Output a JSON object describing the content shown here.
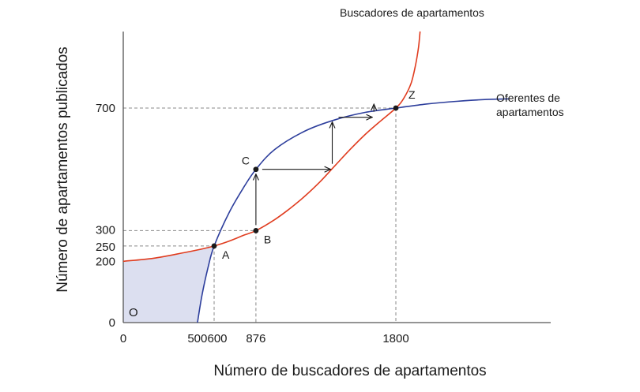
{
  "chart_data": {
    "type": "line",
    "xlabel": "Número de buscadores de apartamentos",
    "ylabel": "Número de apartamentos publicados",
    "origin_label": "O",
    "xlim": [
      0,
      2600
    ],
    "ylim": [
      0,
      950
    ],
    "x_ticks": [
      {
        "value": 0,
        "label": "0"
      },
      {
        "value": 500,
        "label": "500"
      },
      {
        "value": 600,
        "label": "600"
      },
      {
        "value": 876,
        "label": "876"
      },
      {
        "value": 1800,
        "label": "1800"
      }
    ],
    "y_ticks": [
      {
        "value": 0,
        "label": "0"
      },
      {
        "value": 200,
        "label": "200"
      },
      {
        "value": 250,
        "label": "250"
      },
      {
        "value": 300,
        "label": "300"
      },
      {
        "value": 700,
        "label": "700"
      }
    ],
    "series": [
      {
        "name": "Buscadores de apartamentos",
        "color": "#e03c1f",
        "points": [
          [
            0,
            200
          ],
          [
            200,
            210
          ],
          [
            400,
            228
          ],
          [
            500,
            238
          ],
          [
            600,
            250
          ],
          [
            700,
            266
          ],
          [
            800,
            286
          ],
          [
            876,
            300
          ],
          [
            1000,
            336
          ],
          [
            1100,
            372
          ],
          [
            1200,
            413
          ],
          [
            1300,
            460
          ],
          [
            1400,
            513
          ],
          [
            1500,
            566
          ],
          [
            1600,
            615
          ],
          [
            1700,
            658
          ],
          [
            1800,
            700
          ],
          [
            1850,
            730
          ],
          [
            1900,
            780
          ],
          [
            1930,
            840
          ],
          [
            1950,
            900
          ],
          [
            1960,
            950
          ]
        ]
      },
      {
        "name": "Oferentes de apartamentos",
        "color": "#2d3e9c",
        "points": [
          [
            490,
            0
          ],
          [
            520,
            90
          ],
          [
            560,
            180
          ],
          [
            600,
            250
          ],
          [
            700,
            360
          ],
          [
            800,
            445
          ],
          [
            876,
            500
          ],
          [
            1000,
            565
          ],
          [
            1200,
            625
          ],
          [
            1400,
            662
          ],
          [
            1600,
            686
          ],
          [
            1800,
            700
          ],
          [
            2000,
            713
          ],
          [
            2200,
            722
          ],
          [
            2400,
            728
          ],
          [
            2550,
            730
          ]
        ]
      }
    ],
    "points": [
      {
        "label": "A",
        "x": 600,
        "y": 250
      },
      {
        "label": "B",
        "x": 876,
        "y": 300
      },
      {
        "label": "C",
        "x": 876,
        "y": 500
      },
      {
        "label": "Z",
        "x": 1800,
        "y": 700
      }
    ],
    "dashed_guides": [
      {
        "x": 600,
        "y": 250
      },
      {
        "x": 876,
        "y": 300
      },
      {
        "x": 1800,
        "y": 700
      }
    ],
    "arrows": [
      {
        "from": [
          876,
          300
        ],
        "to": [
          876,
          500
        ]
      },
      {
        "from": [
          876,
          500
        ],
        "to": [
          1380,
          500
        ]
      },
      {
        "from": [
          1380,
          500
        ],
        "to": [
          1380,
          670
        ]
      },
      {
        "from": [
          1380,
          670
        ],
        "to": [
          1655,
          670
        ]
      },
      {
        "from": [
          1655,
          670
        ],
        "to": [
          1655,
          728
        ]
      }
    ],
    "shaded_region": "área entre el eje vertical, la curva de buscadores y la curva de oferentes por debajo de A",
    "colors": {
      "shade": "#dcdff0",
      "guide": "#888888",
      "axis": "#555555"
    }
  }
}
